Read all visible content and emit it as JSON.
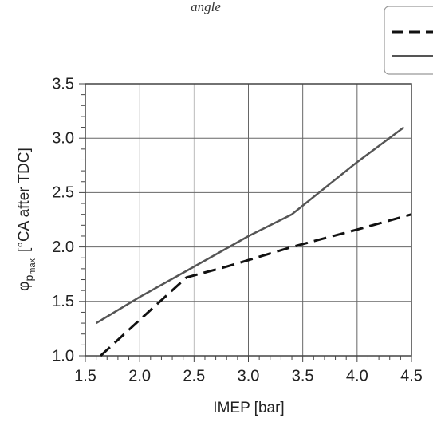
{
  "caption": "angle",
  "chart_data": {
    "type": "line",
    "xlabel": "IMEP [bar]",
    "ylabel_symbol": "φ",
    "ylabel_sub": "p",
    "ylabel_subsub": "max",
    "ylabel_unit": "[°CA after TDC]",
    "xlim": [
      1.5,
      4.5
    ],
    "ylim": [
      1.0,
      3.5
    ],
    "x_ticks": [
      "1.5",
      "2.0",
      "2.5",
      "3.0",
      "3.5",
      "4.0",
      "4.5"
    ],
    "y_ticks": [
      "1.0",
      "1.5",
      "2.0",
      "2.5",
      "3.0",
      "3.5"
    ],
    "grid": true,
    "legend_position": "top-right (partially cut off)",
    "series": [
      {
        "style": "dashed",
        "color": "#111111",
        "x": [
          1.64,
          2.0,
          2.43,
          2.8,
          3.4,
          4.0,
          4.5
        ],
        "y": [
          1.0,
          1.33,
          1.72,
          1.82,
          2.0,
          2.16,
          2.3
        ]
      },
      {
        "style": "solid",
        "color": "#555555",
        "x": [
          1.6,
          2.0,
          2.43,
          3.0,
          3.4,
          4.0,
          4.43
        ],
        "y": [
          1.3,
          1.54,
          1.78,
          2.1,
          2.3,
          2.78,
          3.1
        ]
      }
    ]
  }
}
